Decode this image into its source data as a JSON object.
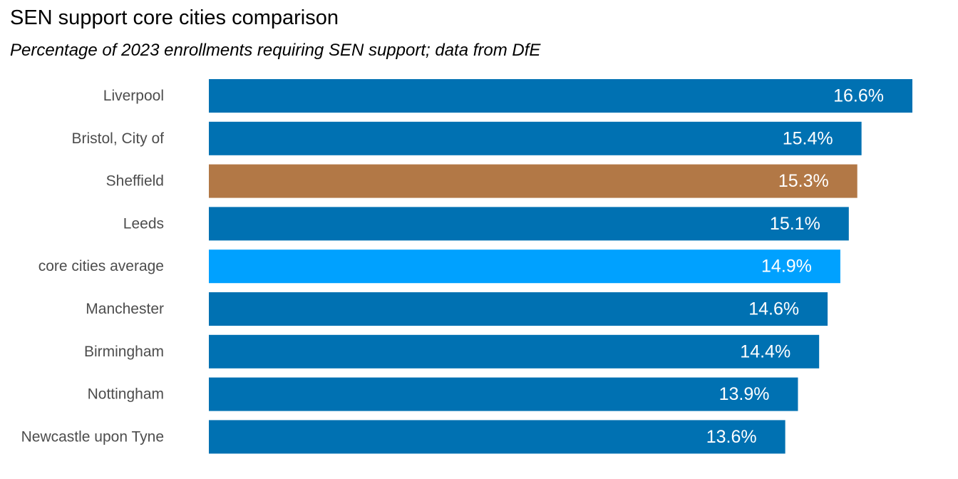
{
  "chart_data": {
    "type": "bar",
    "orientation": "horizontal",
    "title": "SEN support core cities comparison",
    "subtitle": "Percentage of 2023 enrollments requiring SEN support; data from DfE",
    "xlabel": "",
    "ylabel": "",
    "xlim": [
      0,
      16.6
    ],
    "grid": false,
    "legend": "none",
    "value_suffix": "%",
    "categories": [
      "Liverpool",
      "Bristol, City of",
      "Sheffield",
      "Leeds",
      "core cities average",
      "Manchester",
      "Birmingham",
      "Nottingham",
      "Newcastle upon Tyne"
    ],
    "values": [
      16.6,
      15.4,
      15.3,
      15.1,
      14.9,
      14.6,
      14.4,
      13.9,
      13.6
    ],
    "value_labels": [
      "16.6%",
      "15.4%",
      "15.3%",
      "15.1%",
      "14.9%",
      "14.6%",
      "14.4%",
      "13.9%",
      "13.6%"
    ],
    "highlight_category": "Sheffield",
    "average_category": "core cities average",
    "colors": {
      "default": "#0071b2",
      "highlight": "#b27846",
      "average": "#00a1ff",
      "category_label": "#4d4d4d",
      "value_label": "#ffffff"
    }
  }
}
